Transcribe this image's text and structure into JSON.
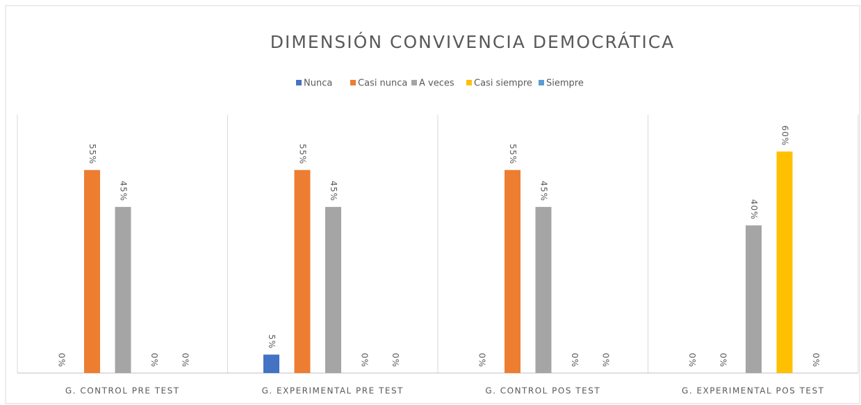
{
  "chart_data": {
    "type": "bar",
    "title": "DIMENSIÓN CONVIVENCIA DEMOCRÁTICA",
    "categories": [
      "G. CONTROL PRE TEST",
      "G. EXPERIMENTAL PRE TEST",
      "G. CONTROL POS TEST",
      "G. EXPERIMENTAL POS TEST"
    ],
    "series": [
      {
        "name": "Nunca",
        "color": "#4472c4",
        "values": [
          0,
          5,
          0,
          0
        ],
        "value_labels": [
          "0%",
          "5%",
          "0%",
          "0%"
        ]
      },
      {
        "name": "Casi nunca",
        "color": "#ed7d31",
        "values": [
          55,
          55,
          55,
          0
        ],
        "value_labels": [
          "55%",
          "55%",
          "55%",
          "0%"
        ]
      },
      {
        "name": "A veces",
        "color": "#a5a5a5",
        "values": [
          45,
          45,
          45,
          40
        ],
        "value_labels": [
          "45%",
          "45%",
          "45%",
          "40%"
        ]
      },
      {
        "name": "Casi siempre",
        "color": "#ffc000",
        "values": [
          0,
          0,
          0,
          60
        ],
        "value_labels": [
          "0%",
          "0%",
          "0%",
          "60%"
        ]
      },
      {
        "name": "Siempre",
        "color": "#5b9bd5",
        "values": [
          0,
          0,
          0,
          0
        ],
        "value_labels": [
          "0%",
          "0%",
          "0%",
          "0%"
        ]
      }
    ],
    "ylim": [
      0,
      70
    ],
    "legend": "top"
  }
}
